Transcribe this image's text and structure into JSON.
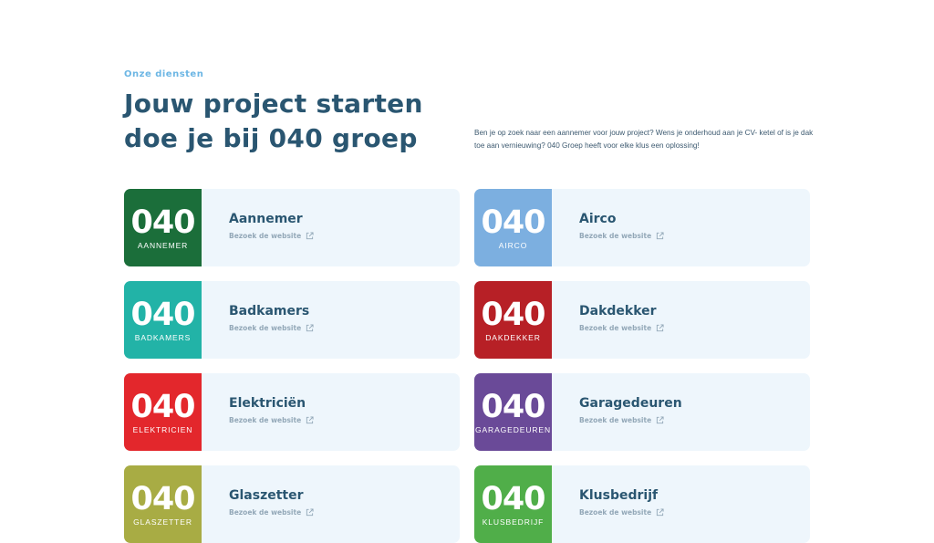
{
  "header": {
    "eyebrow": "Onze diensten",
    "title_line1": "Jouw project starten",
    "title_line2": "doe je bij 040 groep",
    "intro": "Ben je op zoek naar een aannemer voor jouw project? Wens je onderhoud aan je CV- ketel of is je dak toe aan vernieuwing? 040 Groep heeft voor elke klus een oplossing!"
  },
  "link_label": "Bezoek de website",
  "services": [
    {
      "logo_num": "040",
      "logo_sub": "AANNEMER",
      "name": "Aannemer",
      "color": "#1b6e3a"
    },
    {
      "logo_num": "040",
      "logo_sub": "AIRCO",
      "name": "Airco",
      "color": "#7cafe0"
    },
    {
      "logo_num": "040",
      "logo_sub": "BADKAMERS",
      "name": "Badkamers",
      "color": "#22b3a7"
    },
    {
      "logo_num": "040",
      "logo_sub": "DAKDEKKER",
      "name": "Dakdekker",
      "color": "#b72026"
    },
    {
      "logo_num": "040",
      "logo_sub": "ELEKTRICIEN",
      "name": "Elektriciën",
      "color": "#e3272c"
    },
    {
      "logo_num": "040",
      "logo_sub": "GARAGEDEUREN",
      "name": "Garagedeuren",
      "color": "#6a4a98"
    },
    {
      "logo_num": "040",
      "logo_sub": "GLASZETTER",
      "name": "Glaszetter",
      "color": "#a8ac44"
    },
    {
      "logo_num": "040",
      "logo_sub": "KLUSBEDRIJF",
      "name": "Klusbedrijf",
      "color": "#50ae49"
    }
  ]
}
